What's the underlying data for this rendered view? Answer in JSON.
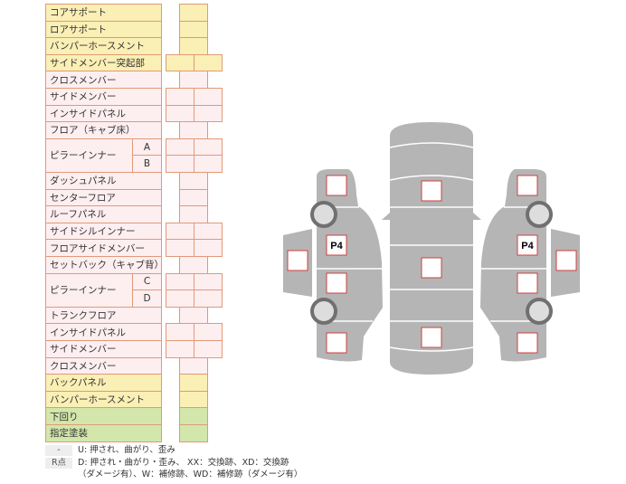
{
  "parts": [
    {
      "label": "コアサポート",
      "color": "y",
      "cells": 1
    },
    {
      "label": "ロアサポート",
      "color": "y",
      "cells": 1
    },
    {
      "label": "バンパーホースメント",
      "color": "y",
      "cells": 1
    },
    {
      "label": "サイドメンバー突起部",
      "color": "y",
      "cells": 2
    },
    {
      "label": "クロスメンバー",
      "color": "p",
      "cells": 1
    },
    {
      "label": "サイドメンバー",
      "color": "p",
      "cells": 2
    },
    {
      "label": "インサイドパネル",
      "color": "p",
      "cells": 2
    },
    {
      "label": "フロア（キャブ床）",
      "color": "p",
      "cells": 1
    },
    {
      "label": "ピラーインナー",
      "sub": "A",
      "color": "p",
      "cells": 2
    },
    {
      "label": "",
      "sub": "B",
      "color": "p",
      "cells": 2
    },
    {
      "label": "ダッシュパネル",
      "color": "p",
      "cells": 1
    },
    {
      "label": "センターフロア",
      "color": "p",
      "cells": 1
    },
    {
      "label": "ルーフパネル",
      "color": "p",
      "cells": 1
    },
    {
      "label": "サイドシルインナー",
      "color": "p",
      "cells": 2
    },
    {
      "label": "フロアサイドメンバー",
      "color": "p",
      "cells": 2
    },
    {
      "label": "セットバック（キャブ背）",
      "color": "p",
      "cells": 1
    },
    {
      "label": "ピラーインナー",
      "sub": "C",
      "color": "p",
      "cells": 2
    },
    {
      "label": "",
      "sub": "D",
      "color": "p",
      "cells": 2
    },
    {
      "label": "トランクフロア",
      "color": "p",
      "cells": 1
    },
    {
      "label": "インサイドパネル",
      "color": "p",
      "cells": 2
    },
    {
      "label": "サイドメンバー",
      "color": "p",
      "cells": 2
    },
    {
      "label": "クロスメンバー",
      "color": "p",
      "cells": 1
    },
    {
      "label": "バックパネル",
      "color": "y",
      "cells": 1
    },
    {
      "label": "バンパーホースメント",
      "color": "y",
      "cells": 1
    },
    {
      "label": "下回り",
      "color": "g",
      "cells": 1
    },
    {
      "label": "指定塗装",
      "color": "g",
      "cells": 1
    }
  ],
  "colors": {
    "yellow": "#faefb5",
    "pink": "#fdeef0",
    "green": "#d3e6ab",
    "border": "#e09a78",
    "car": "#b5b5b5",
    "mark": "#d04040"
  },
  "diagram": {
    "left_mark": "P4",
    "right_mark": "P4"
  },
  "legend": {
    "key1": "-",
    "text1": "U: 押され、曲がり、歪み",
    "key2": "R点",
    "text2a": "D: 押され・曲がり・歪み、 XX：交換跡、XD：交換跡",
    "text2b": "（ダメージ有）、W：補修跡、WD：補修跡（ダメージ有）"
  }
}
